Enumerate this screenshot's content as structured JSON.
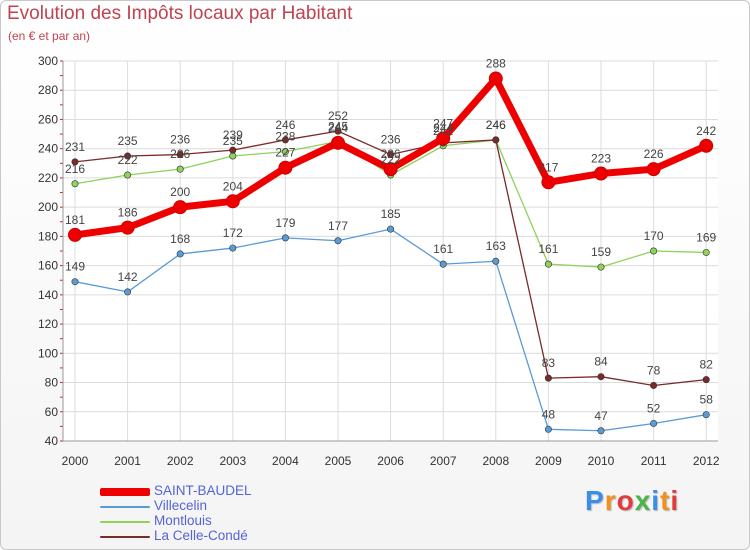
{
  "header": {
    "title": "Evolution des Impôts locaux par Habitant",
    "subtitle": "(en € et par an)"
  },
  "logo": {
    "letters": [
      "P",
      "r",
      "o",
      "x",
      "i",
      "t",
      "i"
    ]
  },
  "chart_data": {
    "type": "line",
    "title": "Evolution des Impôts locaux par Habitant",
    "subtitle": "(en € et par an)",
    "x": [
      "2000",
      "2001",
      "2002",
      "2003",
      "2004",
      "2005",
      "2006",
      "2007",
      "2008",
      "2009",
      "2010",
      "2011",
      "2012"
    ],
    "ylim": [
      40,
      300
    ],
    "yticks": [
      40,
      60,
      80,
      100,
      120,
      140,
      160,
      180,
      200,
      220,
      240,
      260,
      280,
      300
    ],
    "grid": true,
    "legend_position": "bottom-left",
    "series": [
      {
        "name": "SAINT-BAUDEL",
        "color": "#ee0000",
        "values": [
          181,
          186,
          200,
          204,
          227,
          244,
          226,
          247,
          288,
          217,
          223,
          226,
          242
        ],
        "labels": [
          "181",
          "186",
          "200",
          "204",
          "227",
          "244",
          "226",
          "247",
          "288",
          "217",
          "223",
          "226",
          "242"
        ]
      },
      {
        "name": "Villecelin",
        "color": "#5b9bd5",
        "values": [
          149,
          142,
          168,
          172,
          179,
          177,
          185,
          161,
          163,
          48,
          47,
          52,
          58
        ],
        "labels": [
          "149",
          "142",
          "168",
          "172",
          "179",
          "177",
          "185",
          "161",
          "163",
          "48",
          "47",
          "52",
          "58"
        ]
      },
      {
        "name": "Montlouis",
        "color": "#8ed25a",
        "values": [
          216,
          222,
          226,
          235,
          238,
          245,
          222,
          242,
          246,
          161,
          159,
          170,
          169
        ],
        "labels": [
          "216",
          "222",
          "226",
          "235",
          "238",
          "245",
          "222",
          "242",
          "246",
          "161",
          "159",
          "170",
          "169"
        ]
      },
      {
        "name": "La Celle-Condé",
        "color": "#7b2a2a",
        "values": [
          231,
          235,
          236,
          239,
          246,
          252,
          236,
          244,
          246,
          83,
          84,
          78,
          82
        ],
        "labels": [
          "231",
          "235",
          "236",
          "239",
          "246",
          "252",
          "236",
          "244",
          "246",
          "83",
          "84",
          "78",
          "82"
        ]
      }
    ]
  }
}
